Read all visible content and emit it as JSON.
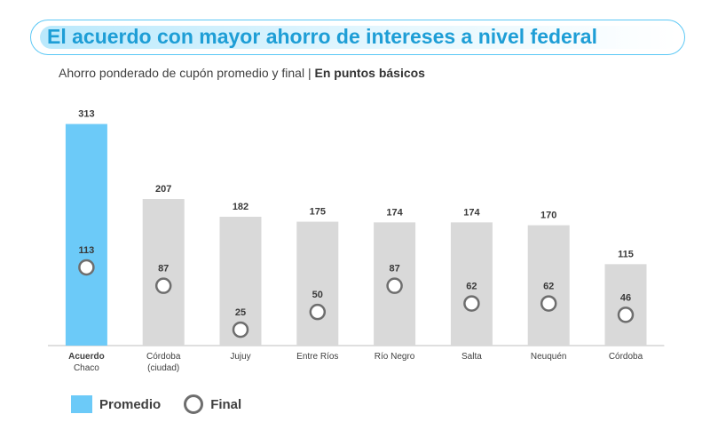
{
  "title": "El acuerdo con mayor ahorro de intereses a nivel federal",
  "subtitle": {
    "main": "Ahorro ponderado de cupón promedio y final",
    "separator": " | ",
    "bold": "En puntos básicos"
  },
  "legend": {
    "promedio": "Promedio",
    "final": "Final"
  },
  "colors": {
    "highlight_bar": "#6ccaf8",
    "bar": "#d9d9d9",
    "marker_stroke": "#6e6e6e",
    "title": "#1e9ed6"
  },
  "chart_data": {
    "type": "bar",
    "title": "El acuerdo con mayor ahorro de intereses a nivel federal",
    "ylabel": "En puntos básicos",
    "ylim": [
      0,
      320
    ],
    "categories": [
      [
        "Acuerdo",
        "Chaco"
      ],
      [
        "Córdoba",
        "(ciudad)"
      ],
      [
        "Jujuy"
      ],
      [
        "Entre Ríos"
      ],
      [
        "Río Negro"
      ],
      [
        "Salta"
      ],
      [
        "Neuquén"
      ],
      [
        "Córdoba"
      ]
    ],
    "highlight_index": 0,
    "series": [
      {
        "name": "Promedio",
        "kind": "bar",
        "values": [
          313,
          207,
          182,
          175,
          174,
          174,
          170,
          115
        ]
      },
      {
        "name": "Final",
        "kind": "marker",
        "values": [
          113,
          87,
          25,
          50,
          87,
          62,
          62,
          46
        ]
      }
    ]
  }
}
